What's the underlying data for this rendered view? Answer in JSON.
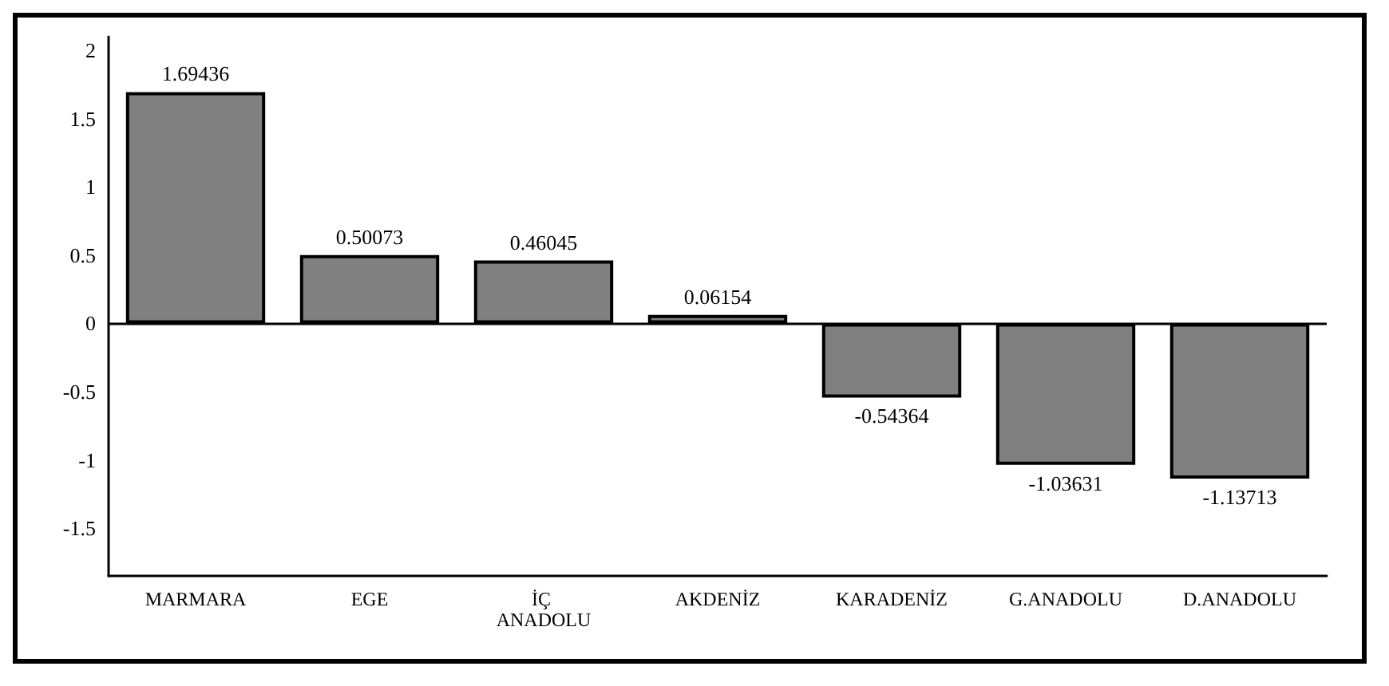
{
  "chart_data": {
    "type": "bar",
    "categories": [
      "MARMARA",
      "EGE",
      "İÇ ANADOLU",
      "AKDENİZ",
      "KARADENİZ",
      "G.ANADOLU",
      "D.ANADOLU"
    ],
    "values": [
      1.69436,
      0.50073,
      0.46045,
      0.06154,
      -0.54364,
      -1.03631,
      -1.13713
    ],
    "color": "#808080",
    "ylim": [
      -1.85,
      2.1
    ],
    "yticks": [
      -1.5,
      -1,
      -0.5,
      0,
      0.5,
      1,
      1.5,
      2
    ],
    "ref_lines": [
      {
        "axis": "y",
        "value": 0
      }
    ],
    "data_labels": true,
    "grid": false
  }
}
